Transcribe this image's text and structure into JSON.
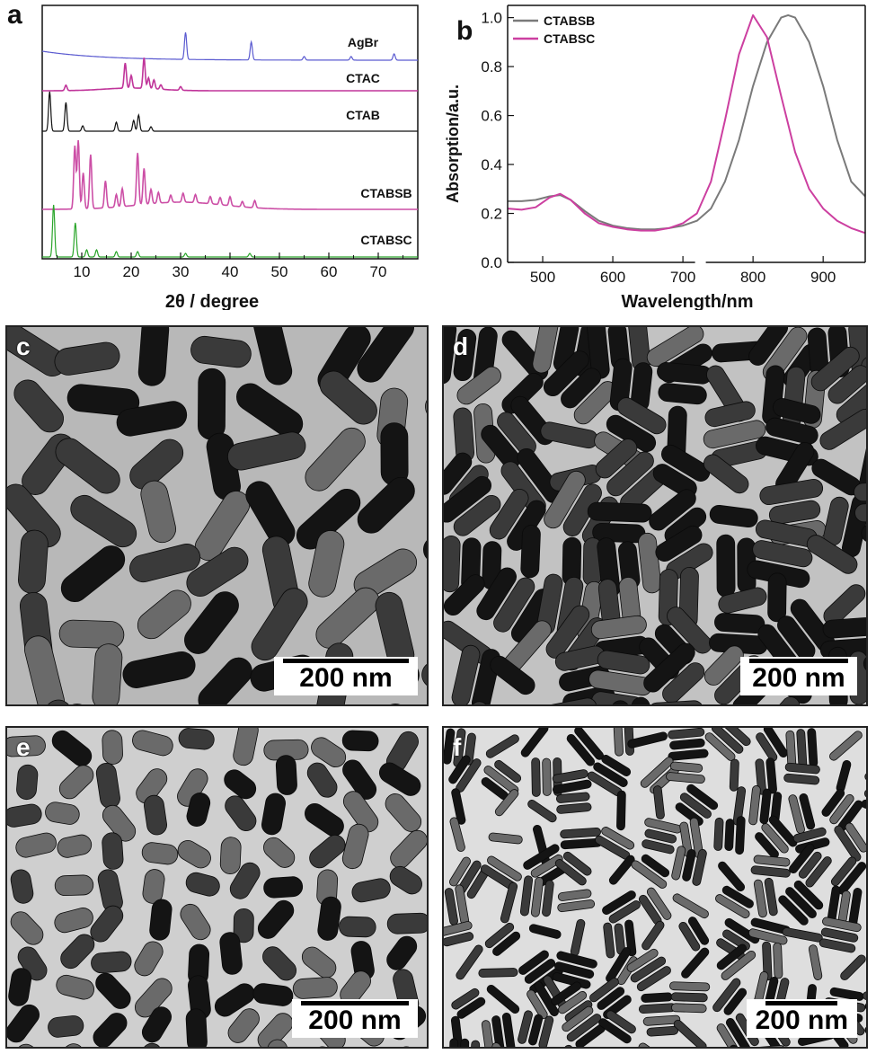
{
  "panel_labels": {
    "a": "a",
    "b": "b",
    "c": "c",
    "d": "d",
    "e": "e",
    "f": "f"
  },
  "chart_data": [
    {
      "type": "line",
      "panel": "a",
      "xlabel": "2θ / degree",
      "ylabel": "",
      "xlim": [
        2,
        78
      ],
      "xticks": [
        "10",
        "20",
        "30",
        "40",
        "50",
        "60",
        "70"
      ],
      "series": [
        {
          "name": "AgBr",
          "color": "#5a5ad0",
          "peaks": [
            [
              31,
              30
            ],
            [
              44.3,
              20
            ],
            [
              55,
              4
            ],
            [
              64.5,
              4
            ],
            [
              73.2,
              7
            ]
          ]
        },
        {
          "name": "CTAC",
          "color": "#c0359a",
          "peaks": [
            [
              6.8,
              6
            ],
            [
              18.8,
              28
            ],
            [
              20,
              14
            ],
            [
              22.6,
              34
            ],
            [
              23.5,
              12
            ],
            [
              24.6,
              10
            ],
            [
              26,
              5
            ],
            [
              30,
              4
            ]
          ]
        },
        {
          "name": "CTAB",
          "color": "#111111",
          "peaks": [
            [
              3.5,
              44
            ],
            [
              6.8,
              32
            ],
            [
              10.2,
              6
            ],
            [
              17,
              10
            ],
            [
              20.5,
              12
            ],
            [
              21.5,
              18
            ],
            [
              24,
              5
            ]
          ]
        },
        {
          "name": "CTABSB",
          "color": "#cc4fa6",
          "peaks": [
            [
              8.6,
              70
            ],
            [
              9.3,
              76
            ],
            [
              10.3,
              40
            ],
            [
              11.8,
              60
            ],
            [
              14.8,
              30
            ],
            [
              17,
              14
            ],
            [
              18.2,
              20
            ],
            [
              21.3,
              58
            ],
            [
              22.6,
              40
            ],
            [
              24,
              16
            ],
            [
              25.5,
              12
            ],
            [
              28,
              8
            ],
            [
              30.5,
              10
            ],
            [
              33,
              9
            ],
            [
              36,
              8
            ],
            [
              38,
              8
            ],
            [
              40,
              10
            ],
            [
              42.5,
              6
            ],
            [
              45,
              8
            ]
          ]
        },
        {
          "name": "CTABSC",
          "color": "#2aa52a",
          "peaks": [
            [
              4.3,
              58
            ],
            [
              8.7,
              38
            ],
            [
              11,
              8
            ],
            [
              13,
              8
            ],
            [
              17,
              6
            ],
            [
              21.3,
              6
            ],
            [
              31,
              4
            ],
            [
              44,
              4
            ]
          ]
        }
      ]
    },
    {
      "type": "line",
      "panel": "b",
      "xlabel": "Wavelength/nm",
      "ylabel": "Absorption/a.u.",
      "xlim": [
        450,
        960
      ],
      "ylim": [
        0,
        1.05
      ],
      "xticks": [
        500,
        600,
        700,
        800,
        900
      ],
      "yticks": [
        "0.0",
        "0.2",
        "0.4",
        "0.6",
        "0.8",
        "1.0"
      ],
      "axis_break_at": 725,
      "legend_position": "top-left",
      "series": [
        {
          "name": "CTABSB",
          "color": "#7a7a7a",
          "x": [
            450,
            470,
            490,
            510,
            525,
            540,
            560,
            580,
            600,
            620,
            640,
            660,
            680,
            700,
            720,
            740,
            760,
            780,
            800,
            820,
            840,
            850,
            860,
            880,
            900,
            920,
            940,
            960
          ],
          "y": [
            0.25,
            0.25,
            0.255,
            0.27,
            0.275,
            0.255,
            0.21,
            0.17,
            0.15,
            0.14,
            0.135,
            0.135,
            0.14,
            0.15,
            0.17,
            0.22,
            0.33,
            0.5,
            0.72,
            0.9,
            1.0,
            1.01,
            1.0,
            0.9,
            0.72,
            0.5,
            0.33,
            0.27
          ]
        },
        {
          "name": "CTABSC",
          "color": "#cc3fa0",
          "x": [
            450,
            470,
            490,
            510,
            525,
            540,
            560,
            580,
            600,
            620,
            640,
            660,
            680,
            700,
            720,
            740,
            760,
            780,
            800,
            820,
            840,
            860,
            880,
            900,
            920,
            940,
            960
          ],
          "y": [
            0.22,
            0.215,
            0.225,
            0.265,
            0.28,
            0.255,
            0.2,
            0.16,
            0.145,
            0.135,
            0.13,
            0.13,
            0.14,
            0.16,
            0.2,
            0.33,
            0.58,
            0.85,
            1.01,
            0.92,
            0.68,
            0.45,
            0.3,
            0.22,
            0.17,
            0.14,
            0.12
          ]
        }
      ]
    }
  ],
  "micrographs": [
    {
      "panel": "c",
      "scale_text": "200 nm"
    },
    {
      "panel": "d",
      "scale_text": "200 nm"
    },
    {
      "panel": "e",
      "scale_text": "200 nm"
    },
    {
      "panel": "f",
      "scale_text": "200 nm"
    }
  ]
}
